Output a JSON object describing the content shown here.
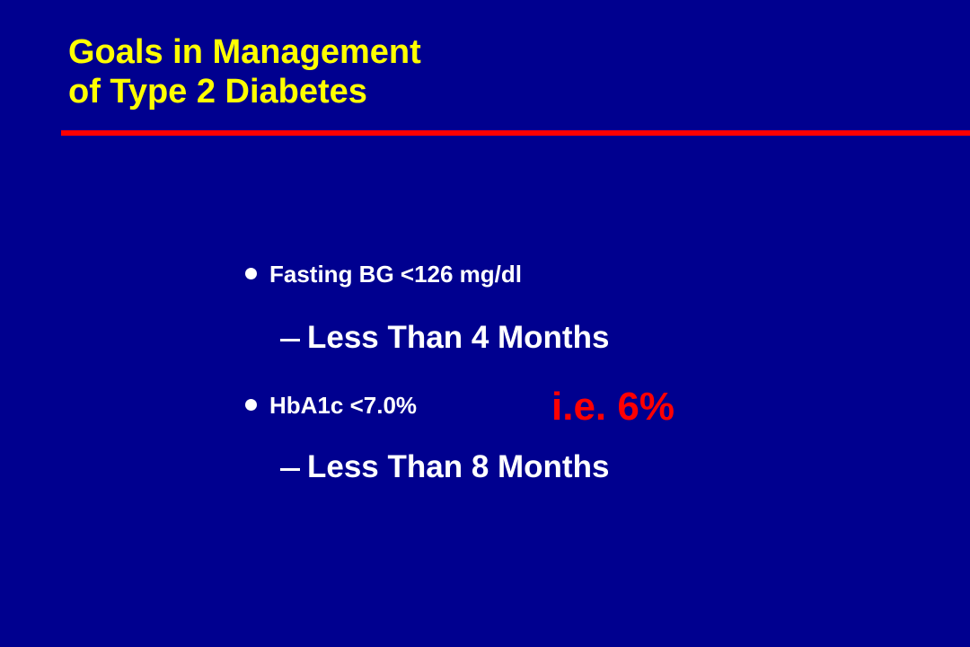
{
  "slide": {
    "title_lines": [
      "Goals in Management",
      "of Type 2 Diabetes"
    ],
    "bullets": [
      {
        "text": "Fasting BG <126 mg/dl",
        "sub": "Less Than 4 Months"
      },
      {
        "text": "HbA1c <7.0%",
        "sub": "Less Than 8 Months"
      }
    ],
    "annotation": "i.e. 6%",
    "colors": {
      "background": "#00008f",
      "title": "#ffff00",
      "rule": "#ff0000",
      "body_text": "#ffffff",
      "annotation": "#ff0000"
    },
    "icons": {
      "bullet": "filled-circle-bullet-icon",
      "sub_bullet": "en-dash-icon"
    }
  }
}
